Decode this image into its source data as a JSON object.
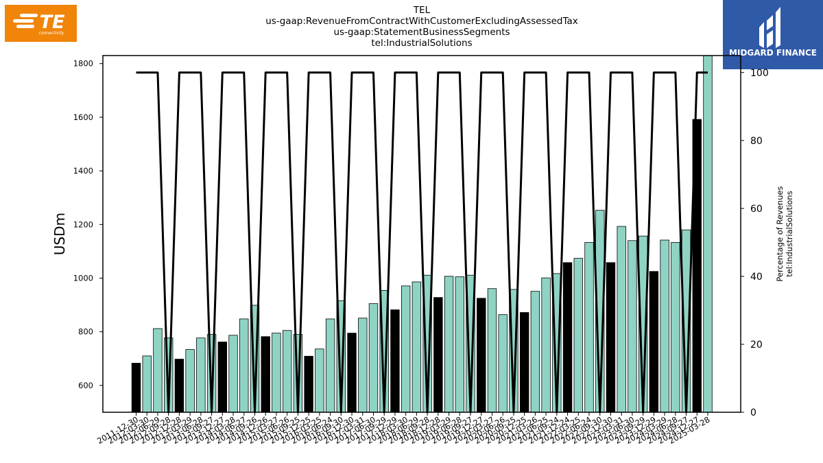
{
  "header": {
    "title_lines": [
      "TEL",
      "us-gaap:RevenueFromContractWithCustomerExcludingAssessedTax",
      "us-gaap:StatementBusinessSegments",
      "tel:IndustrialSolutions"
    ]
  },
  "logos": {
    "left": {
      "text": "TE",
      "subtext": "connectivity",
      "color": "#f0850a"
    },
    "right": {
      "text": "MIDGARD FINANCE",
      "color": "#2f5aa8"
    }
  },
  "colors": {
    "quarter_bar": "#8fd3c4",
    "annual_bar": "#000000",
    "line": "#000000"
  },
  "chart_data": {
    "type": "bar",
    "ylabel": "USDm",
    "y2label_lines": [
      "Percentage of Revenues",
      "tel:IndustrialSolutions"
    ],
    "ylim": [
      500,
      1830
    ],
    "y2lim": [
      0,
      105
    ],
    "yticks": [
      600,
      800,
      1000,
      1200,
      1400,
      1600,
      1800
    ],
    "y2ticks": [
      0,
      20,
      40,
      60,
      80,
      100
    ],
    "categories": [
      "2011-12-30",
      "2012-03-30",
      "2012-06-29",
      "2012-09-28",
      "2012-12-28",
      "2013-03-29",
      "2013-06-28",
      "2013-09-27",
      "2013-12-27",
      "2014-03-28",
      "2014-06-27",
      "2014-09-26",
      "2014-12-26",
      "2015-03-27",
      "2015-06-26",
      "2015-09-25",
      "2015-12-25",
      "2016-03-25",
      "2016-06-24",
      "2016-09-30",
      "2016-12-30",
      "2017-03-31",
      "2017-06-30",
      "2017-09-29",
      "2017-12-29",
      "2018-03-30",
      "2018-06-29",
      "2018-09-28",
      "2018-12-28",
      "2019-03-29",
      "2019-06-28",
      "2019-09-27",
      "2019-12-27",
      "2020-03-27",
      "2020-06-26",
      "2020-09-25",
      "2020-12-25",
      "2021-03-26",
      "2021-06-25",
      "2021-09-24",
      "2021-12-24",
      "2022-03-25",
      "2022-06-24",
      "2022-09-30",
      "2022-12-30",
      "2023-03-31",
      "2023-06-30",
      "2023-09-29",
      "2023-12-29",
      "2024-03-29",
      "2024-06-28",
      "2024-09-27",
      "2024-12-27",
      "2025-03-28"
    ],
    "series": [
      {
        "values": [
          683,
          710,
          812,
          777,
          698,
          734,
          777,
          790,
          762,
          787,
          848,
          899,
          782,
          795,
          805,
          790,
          709,
          736,
          848,
          916,
          795,
          851,
          905,
          954,
          882,
          971,
          986,
          1011,
          928,
          1007,
          1005,
          1011,
          925,
          961,
          864,
          958,
          872,
          951,
          1001,
          1017,
          1058,
          1074,
          1133,
          1253,
          1058,
          1193,
          1140,
          1157,
          1025,
          1142,
          1133,
          1180,
          1592,
          1830
        ]
      }
    ],
    "annual_flags": [
      1,
      0,
      0,
      0,
      1,
      0,
      0,
      0,
      1,
      0,
      0,
      0,
      1,
      0,
      0,
      0,
      1,
      0,
      0,
      0,
      1,
      0,
      0,
      0,
      1,
      0,
      0,
      0,
      1,
      0,
      0,
      0,
      1,
      0,
      0,
      0,
      1,
      0,
      0,
      0,
      1,
      0,
      0,
      0,
      1,
      0,
      0,
      0,
      1,
      0,
      0,
      0,
      1,
      0
    ],
    "percent_line": [
      100,
      100,
      100,
      0,
      100,
      100,
      100,
      0,
      100,
      100,
      100,
      0,
      100,
      100,
      100,
      0,
      100,
      100,
      100,
      0,
      100,
      100,
      100,
      0,
      100,
      100,
      100,
      0,
      100,
      100,
      100,
      0,
      100,
      100,
      100,
      0,
      100,
      100,
      100,
      0,
      100,
      100,
      100,
      0,
      100,
      100,
      100,
      0,
      100,
      100,
      100,
      0,
      100,
      100
    ]
  }
}
